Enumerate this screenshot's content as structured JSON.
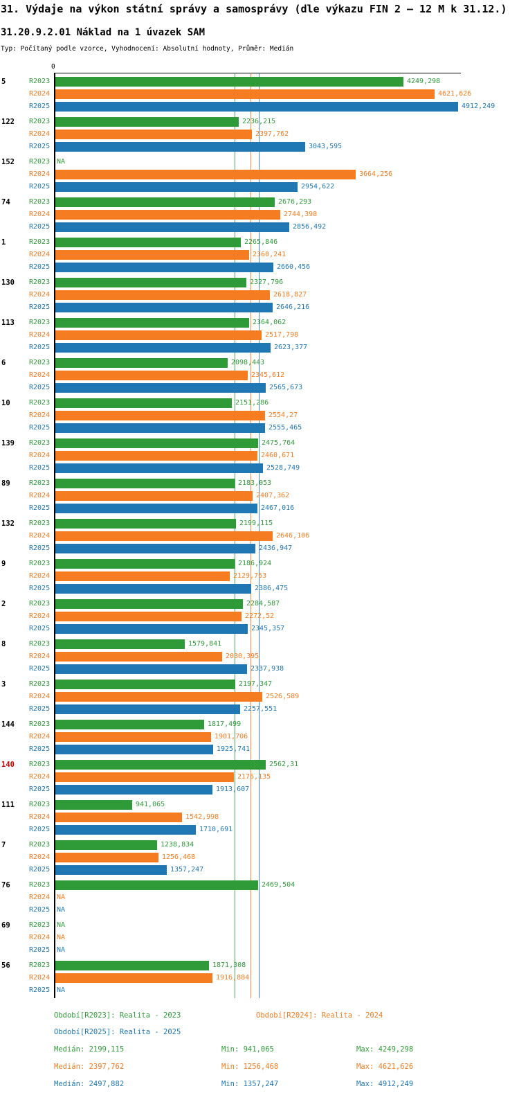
{
  "header": {
    "title": "31. Výdaje na výkon státní správy a samosprávy (dle výkazu FIN 2 – 12 M k 31.12.)",
    "subtitle": "31.20.9.2.01 Náklad na 1 úvazek SAM",
    "meta": "Typ: Počítaný podle vzorce, Vyhodnocení: Absolutní hodnoty, Průměr: Medián"
  },
  "colors": {
    "r2023": "#2e9b38",
    "r2024": "#f57c20",
    "r2025": "#1f77b4",
    "highlight_label": "#cc0000",
    "axis": "#000000"
  },
  "chart_data": {
    "type": "bar",
    "orientation": "horizontal",
    "axis_zero_label": "0",
    "xmax": 4912.249,
    "grid": false,
    "series_names": [
      "R2023",
      "R2024",
      "R2025"
    ],
    "medians": [
      2199.115,
      2397.762,
      2497.882
    ],
    "stats": {
      "R2023": {
        "median": 2199.115,
        "min": 941.065,
        "max": 4249.298
      },
      "R2024": {
        "median": 2397.762,
        "min": 1256.468,
        "max": 4621.626
      },
      "R2025": {
        "median": 2497.882,
        "min": 1357.247,
        "max": 4912.249
      }
    },
    "groups": [
      {
        "id": "5",
        "values": [
          4249.298,
          4621.626,
          4912.249
        ],
        "labels": [
          "4249,298",
          "4621,626",
          "4912,249"
        ]
      },
      {
        "id": "122",
        "values": [
          2236.215,
          2397.762,
          3043.595
        ],
        "labels": [
          "2236,215",
          "2397,762",
          "3043,595"
        ]
      },
      {
        "id": "152",
        "values": [
          null,
          3664.256,
          2954.622
        ],
        "labels": [
          "NA",
          "3664,256",
          "2954,622"
        ]
      },
      {
        "id": "74",
        "values": [
          2676.293,
          2744.398,
          2856.492
        ],
        "labels": [
          "2676,293",
          "2744,398",
          "2856,492"
        ]
      },
      {
        "id": "1",
        "values": [
          2265.846,
          2360.241,
          2660.456
        ],
        "labels": [
          "2265,846",
          "2360,241",
          "2660,456"
        ]
      },
      {
        "id": "130",
        "values": [
          2327.796,
          2618.827,
          2646.216
        ],
        "labels": [
          "2327,796",
          "2618,827",
          "2646,216"
        ]
      },
      {
        "id": "113",
        "values": [
          2364.062,
          2517.798,
          2623.377
        ],
        "labels": [
          "2364,062",
          "2517,798",
          "2623,377"
        ]
      },
      {
        "id": "6",
        "values": [
          2098.443,
          2345.612,
          2565.673
        ],
        "labels": [
          "2098,443",
          "2345,612",
          "2565,673"
        ]
      },
      {
        "id": "10",
        "values": [
          2151.286,
          2554.27,
          2555.465
        ],
        "labels": [
          "2151,286",
          "2554,27",
          "2555,465"
        ]
      },
      {
        "id": "139",
        "values": [
          2475.764,
          2460.671,
          2528.749
        ],
        "labels": [
          "2475,764",
          "2460,671",
          "2528,749"
        ]
      },
      {
        "id": "89",
        "values": [
          2183.053,
          2407.362,
          2467.016
        ],
        "labels": [
          "2183,053",
          "2407,362",
          "2467,016"
        ]
      },
      {
        "id": "132",
        "values": [
          2199.115,
          2646.106,
          2436.947
        ],
        "labels": [
          "2199,115",
          "2646,106",
          "2436,947"
        ]
      },
      {
        "id": "9",
        "values": [
          2186.924,
          2129.763,
          2386.475
        ],
        "labels": [
          "2186,924",
          "2129,763",
          "2386,475"
        ]
      },
      {
        "id": "2",
        "values": [
          2284.587,
          2272.52,
          2345.357
        ],
        "labels": [
          "2284,587",
          "2272,52",
          "2345,357"
        ]
      },
      {
        "id": "8",
        "values": [
          1579.841,
          2030.395,
          2337.938
        ],
        "labels": [
          "1579,841",
          "2030,395",
          "2337,938"
        ]
      },
      {
        "id": "3",
        "values": [
          2197.347,
          2526.589,
          2257.551
        ],
        "labels": [
          "2197,347",
          "2526,589",
          "2257,551"
        ]
      },
      {
        "id": "144",
        "values": [
          1817.499,
          1901.706,
          1925.741
        ],
        "labels": [
          "1817,499",
          "1901,706",
          "1925,741"
        ]
      },
      {
        "id": "140",
        "highlight": true,
        "values": [
          2562.31,
          2176.135,
          1913.607
        ],
        "labels": [
          "2562,31",
          "2176,135",
          "1913,607"
        ]
      },
      {
        "id": "111",
        "values": [
          941.065,
          1542.998,
          1710.691
        ],
        "labels": [
          "941,065",
          "1542,998",
          "1710,691"
        ]
      },
      {
        "id": "7",
        "values": [
          1238.834,
          1256.468,
          1357.247
        ],
        "labels": [
          "1238,834",
          "1256,468",
          "1357,247"
        ]
      },
      {
        "id": "76",
        "values": [
          2469.504,
          null,
          null
        ],
        "labels": [
          "2469,504",
          "NA",
          "NA"
        ]
      },
      {
        "id": "69",
        "values": [
          null,
          null,
          null
        ],
        "labels": [
          "NA",
          "NA",
          "NA"
        ]
      },
      {
        "id": "56",
        "values": [
          1871.308,
          1916.884,
          null
        ],
        "labels": [
          "1871,308",
          "1916,884",
          "NA"
        ]
      }
    ]
  },
  "legend": [
    {
      "series": "R2023",
      "label": "Období[R2023]: Realita - 2023"
    },
    {
      "series": "R2024",
      "label": "Období[R2024]: Realita - 2024"
    },
    {
      "series": "R2025",
      "label": "Období[R2025]: Realita - 2025"
    }
  ],
  "footer": {
    "stats": [
      {
        "series": "R2023",
        "median": "Medián: 2199,115",
        "min": "Min: 941,065",
        "max": "Max: 4249,298"
      },
      {
        "series": "R2024",
        "median": "Medián: 2397,762",
        "min": "Min: 1256,468",
        "max": "Max: 4621,626"
      },
      {
        "series": "R2025",
        "median": "Medián: 2497,882",
        "min": "Min: 1357,247",
        "max": "Max: 4912,249"
      }
    ]
  }
}
